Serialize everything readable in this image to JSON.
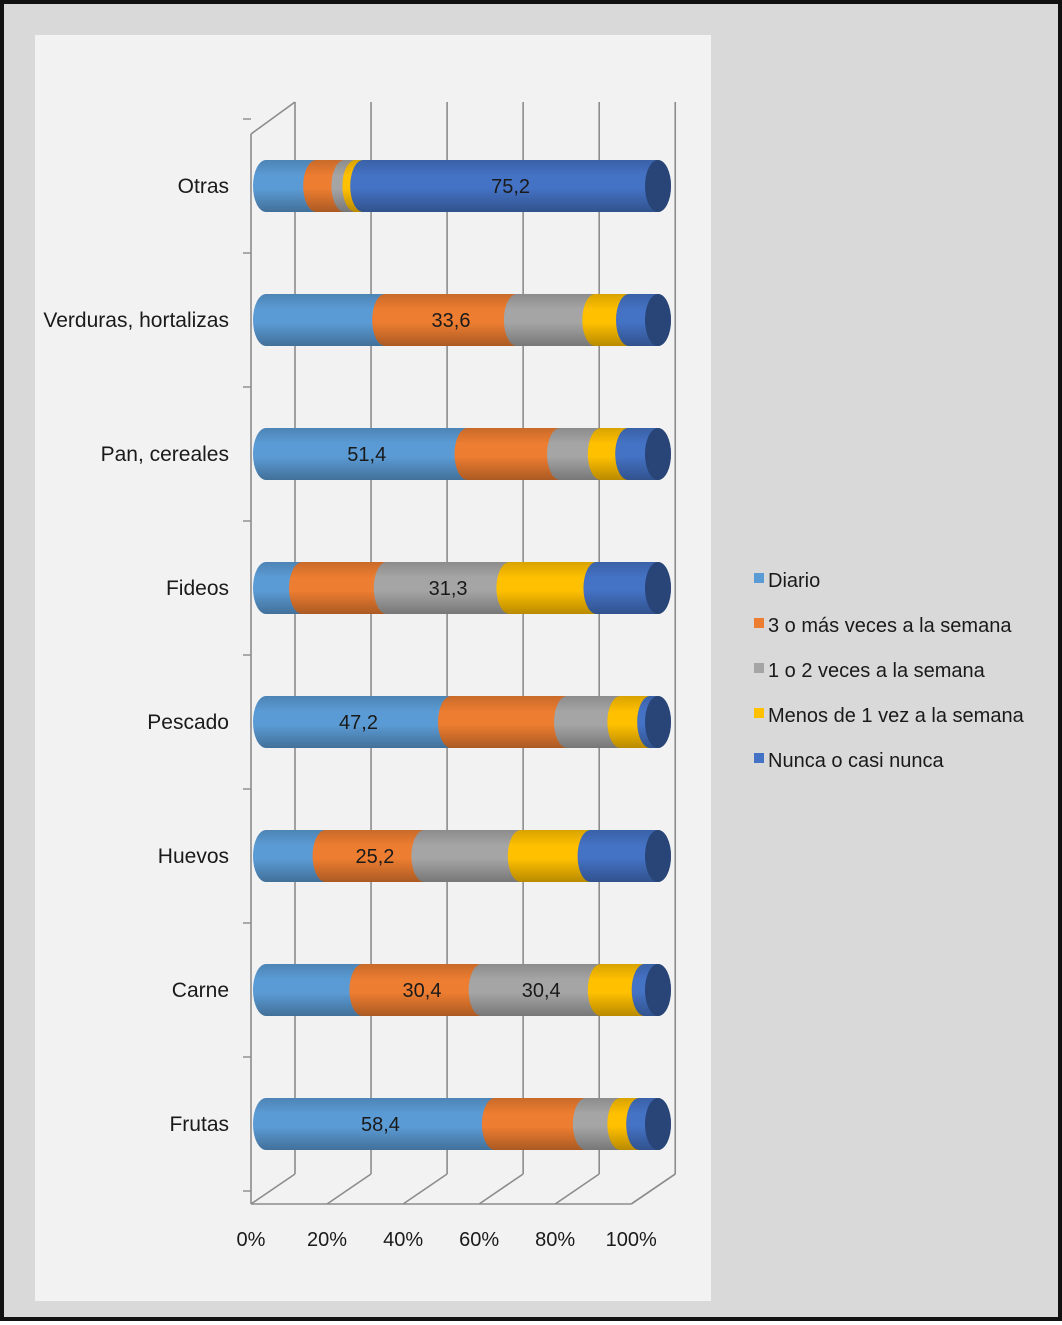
{
  "chart_data": {
    "type": "bar",
    "orientation": "horizontal",
    "stacked": "percent",
    "style": "3d-cylinder",
    "categories": [
      "Otras",
      "Verduras, hortalizas",
      "Pan, cereales",
      "Fideos",
      "Pescado",
      "Huevos",
      "Carne",
      "Frutas"
    ],
    "series": [
      {
        "name": "Diario",
        "color": "#5b9bd5",
        "values": [
          12.8,
          30.4,
          51.4,
          9.2,
          47.2,
          15.2,
          24.6,
          58.4
        ]
      },
      {
        "name": "3 o más veces a la semana",
        "color": "#ed7d31",
        "values": [
          7.2,
          33.6,
          23.6,
          21.6,
          29.6,
          25.2,
          30.4,
          23.2
        ]
      },
      {
        "name": "1 o 2 veces a la semana",
        "color": "#a5a5a5",
        "values": [
          2.8,
          20.0,
          10.4,
          31.3,
          13.6,
          24.6,
          30.4,
          8.8
        ]
      },
      {
        "name": "Menos de 1 vez a la semana",
        "color": "#ffc000",
        "values": [
          2.0,
          8.6,
          7.0,
          22.2,
          7.6,
          17.8,
          11.2,
          4.8
        ]
      },
      {
        "name": "Nunca o casi nunca",
        "color": "#4472c4",
        "values": [
          75.2,
          7.4,
          7.6,
          15.7,
          2.0,
          17.2,
          3.4,
          4.8
        ]
      }
    ],
    "data_labels": [
      {
        "category": "Otras",
        "series": "Nunca o casi nunca",
        "text": "75,2"
      },
      {
        "category": "Verduras, hortalizas",
        "series": "3 o más veces a la semana",
        "text": "33,6"
      },
      {
        "category": "Pan, cereales",
        "series": "Diario",
        "text": "51,4"
      },
      {
        "category": "Fideos",
        "series": "1 o 2 veces a la semana",
        "text": "31,3"
      },
      {
        "category": "Pescado",
        "series": "Diario",
        "text": "47,2"
      },
      {
        "category": "Huevos",
        "series": "3 o más veces a la semana",
        "text": "25,2"
      },
      {
        "category": "Carne",
        "series": "3 o más veces a la semana",
        "text": "30,4"
      },
      {
        "category": "Carne",
        "series": "1 o 2 veces a la semana",
        "text": "30,4"
      },
      {
        "category": "Frutas",
        "series": "Diario",
        "text": "58,4"
      }
    ],
    "x_ticks": [
      "0%",
      "20%",
      "40%",
      "60%",
      "80%",
      "100%"
    ],
    "xlim": [
      0,
      100
    ],
    "grid": true,
    "legend": "right",
    "title": "",
    "xlabel": "",
    "ylabel": ""
  }
}
